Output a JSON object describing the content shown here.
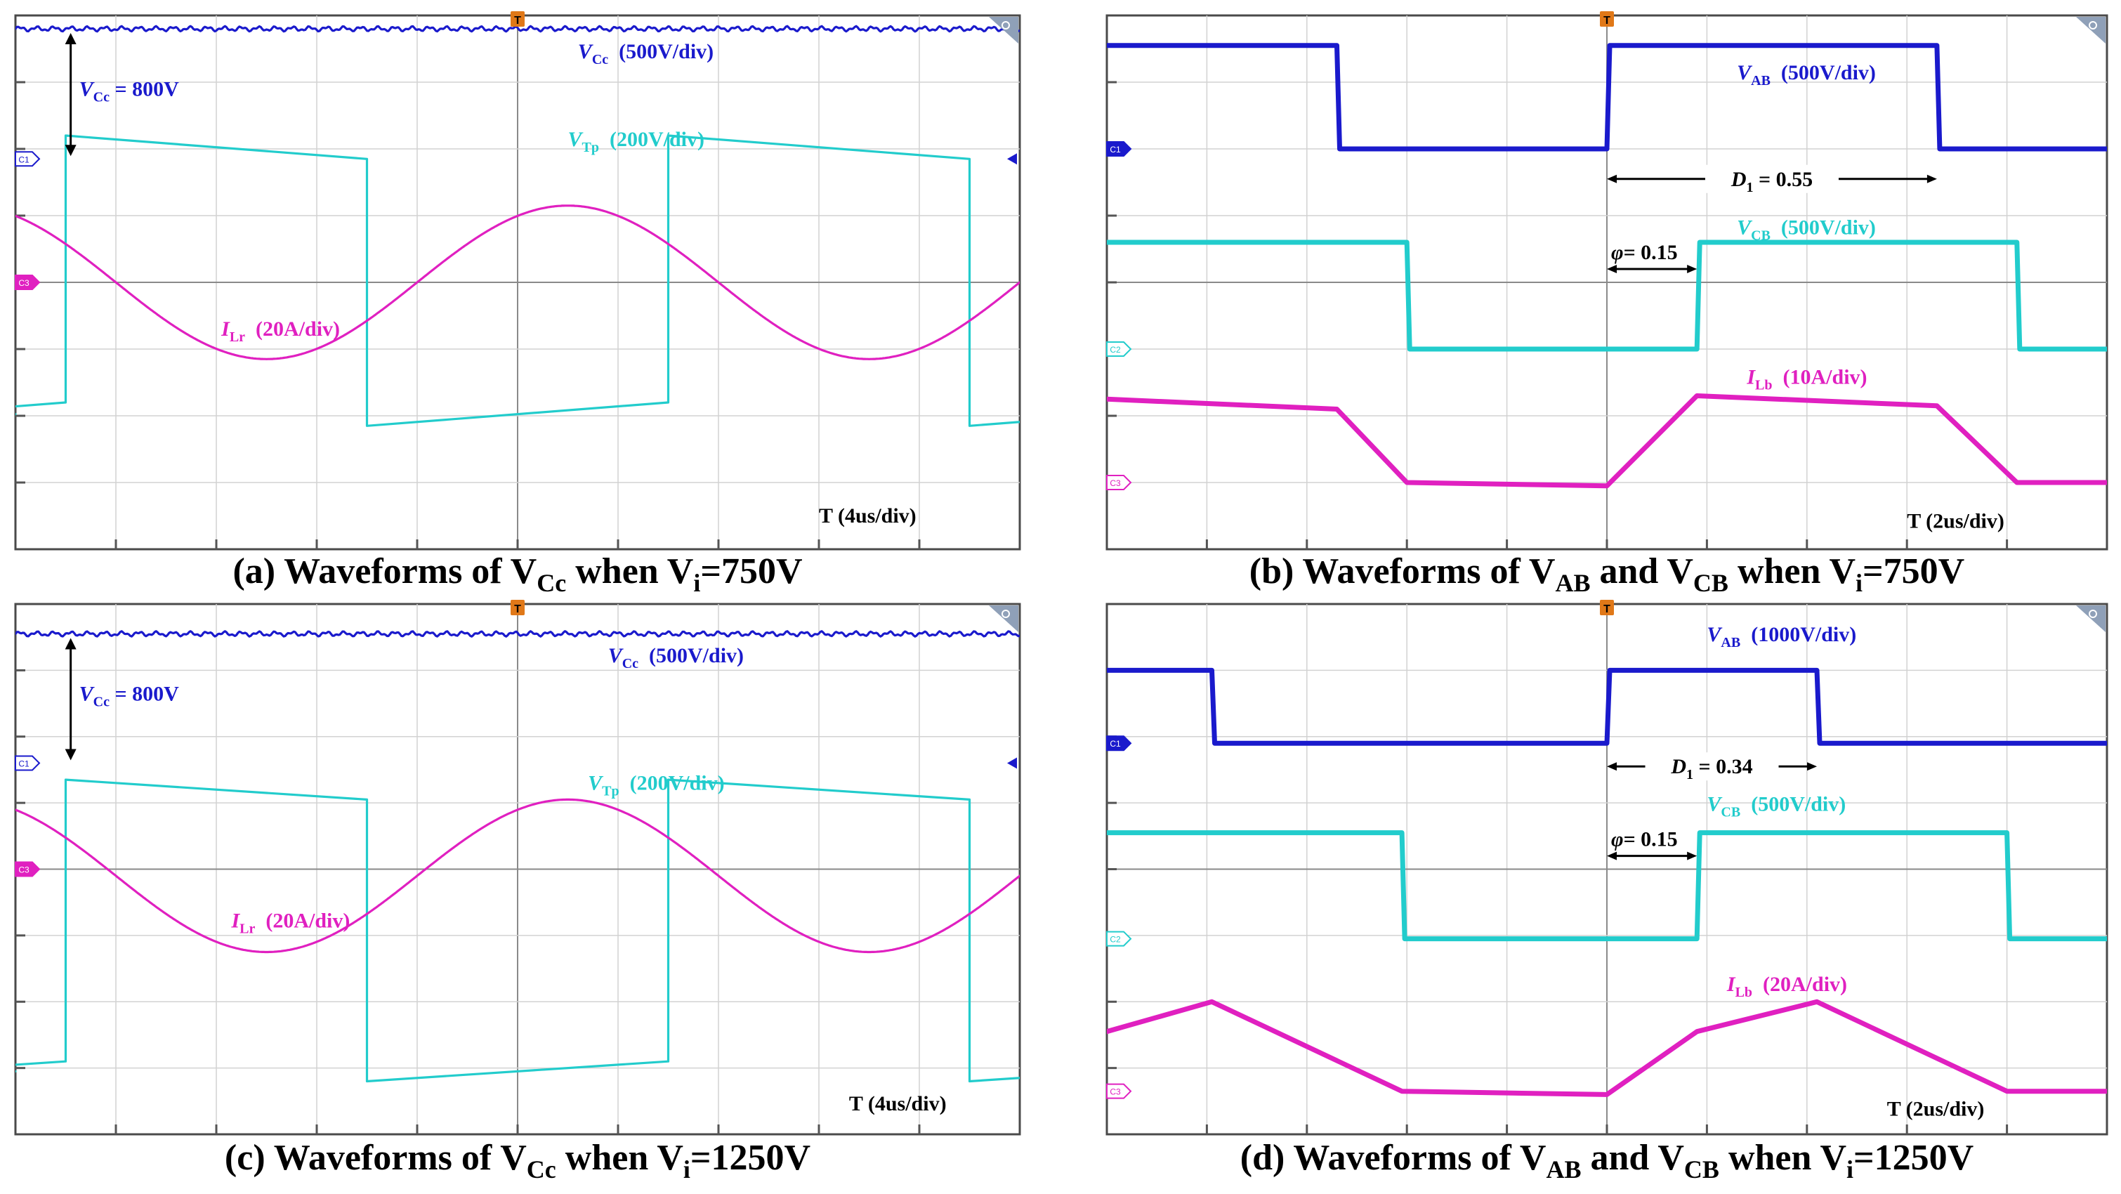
{
  "colors": {
    "channel1": "#1a1acc",
    "channel2": "#22cccc",
    "channel3": "#e020c0",
    "frame": "#4a4a4a",
    "grid": "#d2d2d2",
    "trigger": "#e07818",
    "annotation": "#000000"
  },
  "icons": {
    "trigger": "trigger-marker-icon",
    "zoom": "zoom-corner-icon",
    "channel": "channel-marker-icon"
  },
  "chart_data": [
    {
      "id": "a",
      "type": "line",
      "caption": {
        "pre": "(a) Waveforms of V",
        "sub1": "Cc",
        "mid": " when V",
        "sub2": "i",
        "post": "=750V"
      },
      "grid": {
        "divisions_x": 10,
        "divisions_y": 8,
        "visible": true
      },
      "time_scale": "T    (4us/div)",
      "markers": {
        "trigger": "T",
        "channels": [
          "C1",
          "C3"
        ]
      },
      "annotations": [
        {
          "kind": "label",
          "text": "V",
          "sub": "Cc",
          "rest": " = 800V",
          "color": "annotation"
        }
      ],
      "series": [
        {
          "name": "V",
          "sub": "Cc",
          "scale": "(500V/div)",
          "color": "channel1",
          "shape": "flat",
          "level": 3.8
        },
        {
          "name": "V",
          "sub": "Tp",
          "scale": "(200V/div)",
          "color": "channel2",
          "shape": "square",
          "period": 6.0,
          "phase": 0.5,
          "high": 2.2,
          "low": -2.15,
          "droop": 0.35
        },
        {
          "name": "I",
          "sub": "Lr",
          "scale": "(20A/div)",
          "color": "channel3",
          "shape": "sine",
          "period": 6.0,
          "phase": 1.0,
          "amplitude": 1.15,
          "offset": 0.0
        }
      ]
    },
    {
      "id": "b",
      "type": "line",
      "caption": {
        "pre": "(b) Waveforms of V",
        "sub1": "AB",
        "mid": " and V",
        "sub2": "CB",
        "post": " when V",
        "sub3": "i",
        "post2": "=750V"
      },
      "grid": {
        "divisions_x": 10,
        "divisions_y": 8,
        "visible": true
      },
      "time_scale": "T    (2us/div)",
      "markers": {
        "trigger": "T",
        "channels": [
          "C1",
          "C2",
          "C3"
        ]
      },
      "annotations": [
        {
          "kind": "span",
          "text": "D",
          "sub": "1",
          "rest": " = 0.55"
        },
        {
          "kind": "span",
          "text": "φ",
          "rest": "= 0.15"
        }
      ],
      "series": [
        {
          "name": "V",
          "sub": "AB",
          "scale": "(500V/div)",
          "color": "channel1",
          "shape": "pulse",
          "high": 3.55,
          "low": 2.0,
          "edges": [
            [
              -1,
              1
            ],
            [
              2.3,
              0
            ],
            [
              5.0,
              1
            ],
            [
              8.3,
              0
            ],
            [
              11,
              0
            ]
          ]
        },
        {
          "name": "V",
          "sub": "CB",
          "scale": "(500V/div)",
          "color": "channel2",
          "shape": "pulse",
          "high": 0.6,
          "low": -1.0,
          "edges": [
            [
              -1,
              1
            ],
            [
              3.0,
              0
            ],
            [
              5.9,
              1
            ],
            [
              9.1,
              0
            ],
            [
              11,
              0
            ]
          ]
        },
        {
          "name": "I",
          "sub": "Lb",
          "scale": "(10A/div)",
          "color": "channel3",
          "shape": "trapezoid",
          "points": [
            [
              0,
              -1.75
            ],
            [
              2.3,
              -1.9
            ],
            [
              3.0,
              -3.0
            ],
            [
              5.0,
              -3.05
            ],
            [
              5.9,
              -1.7
            ],
            [
              8.3,
              -1.85
            ],
            [
              9.1,
              -3.0
            ],
            [
              10,
              -3.0
            ]
          ]
        }
      ]
    },
    {
      "id": "c",
      "type": "line",
      "caption": {
        "pre": "(c) Waveforms of V",
        "sub1": "Cc",
        "mid": " when V",
        "sub2": "i",
        "post": "=1250V"
      },
      "grid": {
        "divisions_x": 10,
        "divisions_y": 8,
        "visible": true
      },
      "time_scale": "T    (4us/div)",
      "markers": {
        "trigger": "T",
        "channels": [
          "C1",
          "C3"
        ]
      },
      "annotations": [
        {
          "kind": "label",
          "text": "V",
          "sub": "Cc",
          "rest": " = 800V",
          "color": "annotation"
        }
      ],
      "series": [
        {
          "name": "V",
          "sub": "Cc",
          "scale": "(500V/div)",
          "color": "channel1",
          "shape": "flat",
          "level": 3.55
        },
        {
          "name": "V",
          "sub": "Tp",
          "scale": "(200V/div)",
          "color": "channel2",
          "shape": "square",
          "period": 6.0,
          "phase": 0.5,
          "high": 1.35,
          "low": -3.2,
          "droop": 0.3
        },
        {
          "name": "I",
          "sub": "Lr",
          "scale": "(20A/div)",
          "color": "channel3",
          "shape": "sine",
          "period": 6.0,
          "phase": 1.0,
          "amplitude": 1.15,
          "offset": -0.1
        }
      ]
    },
    {
      "id": "d",
      "type": "line",
      "caption": {
        "pre": "(d) Waveforms of V",
        "sub1": "AB",
        "mid": " and V",
        "sub2": "CB",
        "post": " when V",
        "sub3": "i",
        "post2": "=1250V"
      },
      "grid": {
        "divisions_x": 10,
        "divisions_y": 8,
        "visible": true
      },
      "time_scale": "T    (2us/div)",
      "markers": {
        "trigger": "T",
        "channels": [
          "C1",
          "C2",
          "C3"
        ]
      },
      "annotations": [
        {
          "kind": "span",
          "text": "D",
          "sub": "1",
          "rest": " = 0.34"
        },
        {
          "kind": "span",
          "text": "φ",
          "rest": "= 0.15"
        }
      ],
      "series": [
        {
          "name": "V",
          "sub": "AB",
          "scale": "(1000V/div)",
          "color": "channel1",
          "shape": "pulse",
          "high": 3.0,
          "low": 1.9,
          "edges": [
            [
              -1,
              1
            ],
            [
              1.05,
              0
            ],
            [
              5.0,
              1
            ],
            [
              7.1,
              0
            ],
            [
              11,
              0
            ]
          ]
        },
        {
          "name": "V",
          "sub": "CB",
          "scale": "(500V/div)",
          "color": "channel2",
          "shape": "pulse",
          "high": 0.55,
          "low": -1.05,
          "edges": [
            [
              -1,
              1
            ],
            [
              2.95,
              0
            ],
            [
              5.9,
              1
            ],
            [
              9.0,
              0
            ],
            [
              11,
              0
            ]
          ]
        },
        {
          "name": "I",
          "sub": "Lb",
          "scale": "(20A/div)",
          "color": "channel3",
          "shape": "trapezoid",
          "points": [
            [
              0,
              -2.45
            ],
            [
              1.05,
              -2.0
            ],
            [
              2.95,
              -3.35
            ],
            [
              5.0,
              -3.4
            ],
            [
              5.9,
              -2.45
            ],
            [
              7.1,
              -2.0
            ],
            [
              9.0,
              -3.35
            ],
            [
              10,
              -3.35
            ]
          ]
        }
      ]
    }
  ]
}
